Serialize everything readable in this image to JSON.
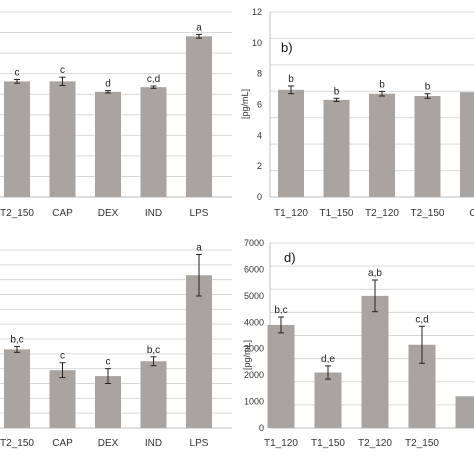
{
  "chart_data": [
    {
      "type": "bar",
      "panel": "top-left",
      "categories": [
        "T2_150",
        "CAP",
        "DEX",
        "IND",
        "LPS"
      ],
      "values": [
        5.0,
        5.0,
        4.55,
        4.75,
        6.95
      ],
      "errors": [
        0.08,
        0.18,
        0.05,
        0.05,
        0.08
      ],
      "labels": [
        "c",
        "c",
        "d",
        "c,d",
        "a"
      ],
      "ylim": [
        0,
        8
      ]
    },
    {
      "type": "bar",
      "panel": "top-right",
      "title": "b)",
      "ylabel": "[pg/mL]",
      "categories": [
        "T1_120",
        "T1_150",
        "T2_120",
        "T2_150",
        "C"
      ],
      "values": [
        6.95,
        6.3,
        6.7,
        6.55,
        6.8
      ],
      "errors": [
        0.25,
        0.1,
        0.15,
        0.15,
        0.0
      ],
      "labels": [
        "b",
        "b",
        "b",
        "b",
        ""
      ],
      "yticks": [
        0,
        2,
        4,
        6,
        8,
        10,
        12
      ],
      "ylim": [
        0,
        12
      ]
    },
    {
      "type": "bar",
      "panel": "bottom-left",
      "categories": [
        "T2_150",
        "CAP",
        "DEX",
        "IND",
        "LPS"
      ],
      "values": [
        2.65,
        1.95,
        1.75,
        2.25,
        5.15
      ],
      "errors": [
        0.1,
        0.25,
        0.25,
        0.15,
        0.7
      ],
      "labels": [
        "b,c",
        "c",
        "c",
        "b,c",
        "a"
      ],
      "ylim": [
        0,
        6
      ]
    },
    {
      "type": "bar",
      "panel": "bottom-right",
      "title": "d)",
      "ylabel": "[pg/mL]",
      "categories": [
        "T1_120",
        "T1_150",
        "T2_120",
        "T2_150",
        ""
      ],
      "values": [
        3900,
        2100,
        5000,
        3150,
        1200
      ],
      "errors": [
        300,
        250,
        600,
        700,
        0
      ],
      "labels": [
        "b,c",
        "d,e",
        "a,b",
        "c,d",
        ""
      ],
      "yticks": [
        0,
        1000,
        2000,
        3000,
        4000,
        5000,
        6000,
        7000
      ],
      "ylim": [
        0,
        7000
      ]
    }
  ]
}
